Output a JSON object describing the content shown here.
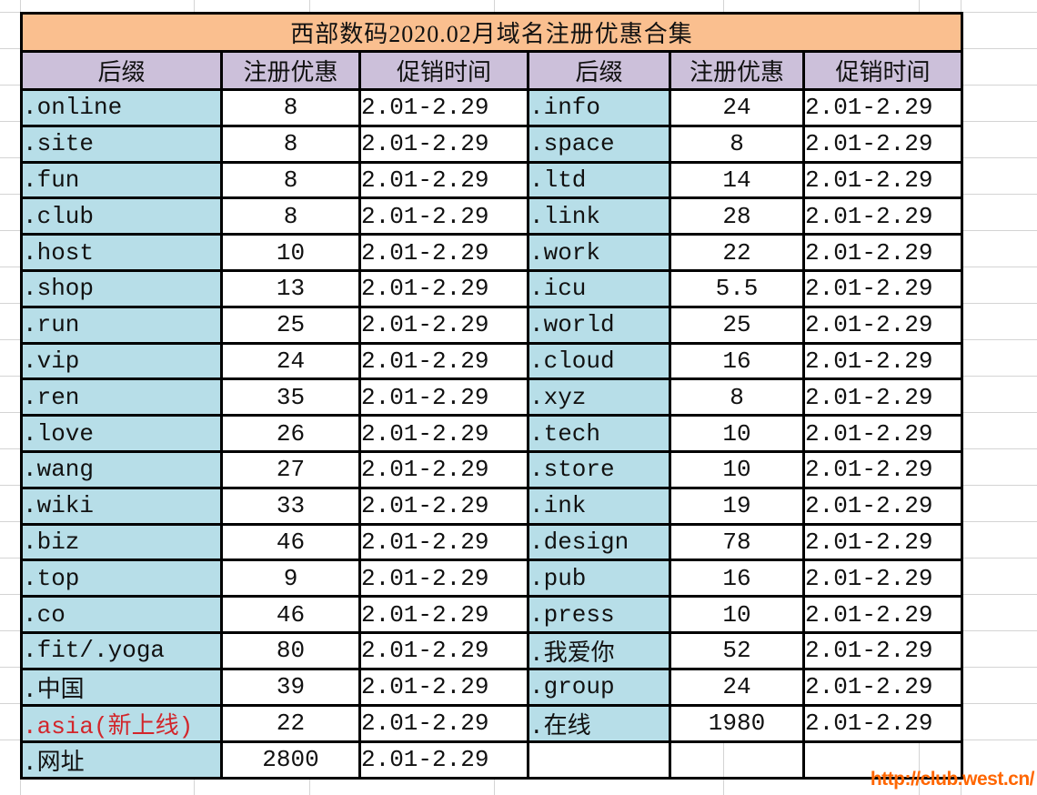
{
  "sheet": {
    "title": "西部数码2020.02月域名注册优惠合集",
    "watermark": "http://club.west.cn/"
  },
  "colors": {
    "title_bg": "#FABF8F",
    "header_bg": "#CCC0DA",
    "suffix_bg": "#B7DEE8",
    "price_text": "#D2262B",
    "watermark_text": "#FF6600",
    "gridline": "#D4D4D4",
    "border": "#000000"
  },
  "table": {
    "headers": [
      "后缀",
      "注册优惠",
      "促销时间"
    ],
    "left_rows": [
      {
        "suffix": ".online",
        "price": "8",
        "period": "2.01-2.29",
        "highlight": false
      },
      {
        "suffix": ".site",
        "price": "8",
        "period": "2.01-2.29",
        "highlight": false
      },
      {
        "suffix": ".fun",
        "price": "8",
        "period": "2.01-2.29",
        "highlight": false
      },
      {
        "suffix": ".club",
        "price": "8",
        "period": "2.01-2.29",
        "highlight": false
      },
      {
        "suffix": ".host",
        "price": "10",
        "period": "2.01-2.29",
        "highlight": false
      },
      {
        "suffix": ".shop",
        "price": "13",
        "period": "2.01-2.29",
        "highlight": false
      },
      {
        "suffix": ".run",
        "price": "25",
        "period": "2.01-2.29",
        "highlight": false
      },
      {
        "suffix": ".vip",
        "price": "24",
        "period": "2.01-2.29",
        "highlight": false
      },
      {
        "suffix": ".ren",
        "price": "35",
        "period": "2.01-2.29",
        "highlight": false
      },
      {
        "suffix": ".love",
        "price": "26",
        "period": "2.01-2.29",
        "highlight": false
      },
      {
        "suffix": ".wang",
        "price": "27",
        "period": "2.01-2.29",
        "highlight": false
      },
      {
        "suffix": ".wiki",
        "price": "33",
        "period": "2.01-2.29",
        "highlight": false
      },
      {
        "suffix": ".biz",
        "price": "46",
        "period": "2.01-2.29",
        "highlight": false
      },
      {
        "suffix": ".top",
        "price": "9",
        "period": "2.01-2.29",
        "highlight": false
      },
      {
        "suffix": ".co",
        "price": "46",
        "period": "2.01-2.29",
        "highlight": false
      },
      {
        "suffix": ".fit/.yoga",
        "price": "80",
        "period": "2.01-2.29",
        "highlight": false
      },
      {
        "suffix": ".中国",
        "price": "39",
        "period": "2.01-2.29",
        "highlight": false
      },
      {
        "suffix": ".asia(新上线)",
        "price": "22",
        "period": "2.01-2.29",
        "highlight": true
      },
      {
        "suffix": ".网址",
        "price": "2800",
        "period": "2.01-2.29",
        "highlight": false
      }
    ],
    "right_rows": [
      {
        "suffix": ".info",
        "price": "24",
        "period": "2.01-2.29",
        "highlight": false
      },
      {
        "suffix": ".space",
        "price": "8",
        "period": "2.01-2.29",
        "highlight": false
      },
      {
        "suffix": ".ltd",
        "price": "14",
        "period": "2.01-2.29",
        "highlight": false
      },
      {
        "suffix": ".link",
        "price": "28",
        "period": "2.01-2.29",
        "highlight": false
      },
      {
        "suffix": ".work",
        "price": "22",
        "period": "2.01-2.29",
        "highlight": false
      },
      {
        "suffix": ".icu",
        "price": "5.5",
        "period": "2.01-2.29",
        "highlight": false
      },
      {
        "suffix": ".world",
        "price": "25",
        "period": "2.01-2.29",
        "highlight": false
      },
      {
        "suffix": ".cloud",
        "price": "16",
        "period": "2.01-2.29",
        "highlight": false
      },
      {
        "suffix": ".xyz",
        "price": "8",
        "period": "2.01-2.29",
        "highlight": false
      },
      {
        "suffix": ".tech",
        "price": "10",
        "period": "2.01-2.29",
        "highlight": false
      },
      {
        "suffix": ".store",
        "price": "10",
        "period": "2.01-2.29",
        "highlight": false
      },
      {
        "suffix": ".ink",
        "price": "19",
        "period": "2.01-2.29",
        "highlight": false
      },
      {
        "suffix": ".design",
        "price": "78",
        "period": "2.01-2.29",
        "highlight": false
      },
      {
        "suffix": ".pub",
        "price": "16",
        "period": "2.01-2.29",
        "highlight": false
      },
      {
        "suffix": ".press",
        "price": "10",
        "period": "2.01-2.29",
        "highlight": false
      },
      {
        "suffix": ".我爱你",
        "price": "52",
        "period": "2.01-2.29",
        "highlight": false
      },
      {
        "suffix": ".group",
        "price": "24",
        "period": "2.01-2.29",
        "highlight": false
      },
      {
        "suffix": ".在线",
        "price": "1980",
        "period": "2.01-2.29",
        "highlight": false
      }
    ]
  }
}
